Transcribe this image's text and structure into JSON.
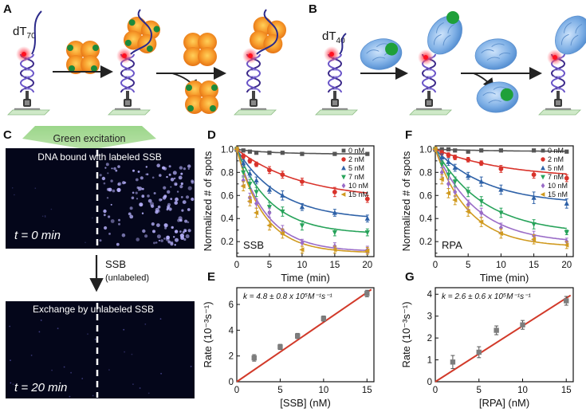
{
  "panel_labels": {
    "A": "A",
    "B": "B",
    "C": "C",
    "D": "D",
    "E": "E",
    "F": "F",
    "G": "G"
  },
  "schematic": {
    "dna_a": "dT",
    "dna_a_sub": "70",
    "dna_b": "dT",
    "dna_b_sub": "40"
  },
  "panel_c": {
    "excitation": "Green excitation",
    "top_caption": "DNA bound with labeled SSB",
    "top_time": "t = 0 min",
    "arrow_label": "SSB",
    "arrow_sublabel": "(unlabeled)",
    "bottom_caption": "Exchange by unlabeled SSB",
    "bottom_time": "t = 20 min"
  },
  "colors": {
    "0 nM": "#555555",
    "2 nM": "#d9332b",
    "5 nM": "#2f62a8",
    "7 nM": "#27a35a",
    "10 nM": "#9a6cc7",
    "15 nM": "#d09a1f",
    "fit_line": "#d23a2a",
    "gray_point": "#7d7d7d"
  },
  "chart_data": [
    {
      "id": "D",
      "type": "line",
      "inset_label": "SSB",
      "xlabel": "Time (min)",
      "ylabel": "Normalized # of spots",
      "xlim": [
        0,
        21
      ],
      "ylim": [
        0.07,
        1.03
      ],
      "xticks": [
        0,
        5,
        10,
        15,
        20
      ],
      "yticks": [
        0.1,
        0.2,
        0.3,
        0.4,
        0.5,
        0.6,
        0.7,
        0.8,
        0.9,
        1.0
      ],
      "ytick_labels": [
        "",
        "0.2",
        "",
        "0.4",
        "",
        "0.6",
        "",
        "0.8",
        "",
        "1.0"
      ],
      "legend_position": "top-right",
      "x": [
        0,
        1,
        2,
        3,
        5,
        7,
        10,
        15,
        20
      ],
      "series": [
        {
          "name": "0 nM",
          "marker": "square",
          "values": [
            1.0,
            0.99,
            0.98,
            0.97,
            0.97,
            0.97,
            0.96,
            0.96,
            0.96
          ],
          "err": [
            0.01,
            0.01,
            0.01,
            0.01,
            0.01,
            0.01,
            0.01,
            0.01,
            0.01
          ]
        },
        {
          "name": "2 nM",
          "marker": "circle",
          "values": [
            1.0,
            0.94,
            0.9,
            0.87,
            0.82,
            0.78,
            0.72,
            0.63,
            0.57
          ],
          "err": [
            0.02,
            0.02,
            0.02,
            0.02,
            0.03,
            0.03,
            0.03,
            0.04,
            0.03
          ]
        },
        {
          "name": "5 nM",
          "marker": "triangle-up",
          "values": [
            1.0,
            0.88,
            0.79,
            0.73,
            0.65,
            0.6,
            0.5,
            0.45,
            0.4
          ],
          "err": [
            0.02,
            0.03,
            0.03,
            0.03,
            0.03,
            0.04,
            0.03,
            0.03,
            0.03
          ]
        },
        {
          "name": "7 nM",
          "marker": "triangle-down",
          "values": [
            1.0,
            0.8,
            0.7,
            0.63,
            0.5,
            0.46,
            0.34,
            0.28,
            0.28
          ],
          "err": [
            0.02,
            0.04,
            0.04,
            0.04,
            0.04,
            0.04,
            0.04,
            0.03,
            0.03
          ]
        },
        {
          "name": "10 nM",
          "marker": "diamond",
          "values": [
            1.0,
            0.73,
            0.58,
            0.53,
            0.45,
            0.3,
            0.19,
            0.16,
            0.13
          ],
          "err": [
            0.02,
            0.04,
            0.04,
            0.04,
            0.04,
            0.04,
            0.03,
            0.03,
            0.03
          ]
        },
        {
          "name": "15 nM",
          "marker": "triangle-left",
          "values": [
            1.0,
            0.68,
            0.55,
            0.45,
            0.34,
            0.27,
            0.13,
            0.13,
            0.12
          ],
          "err": [
            0.02,
            0.04,
            0.04,
            0.04,
            0.04,
            0.04,
            0.03,
            0.03,
            0.03
          ]
        }
      ]
    },
    {
      "id": "F",
      "type": "line",
      "inset_label": "RPA",
      "xlabel": "Time (min)",
      "ylabel": "Normalized # of spots",
      "xlim": [
        0,
        21
      ],
      "ylim": [
        0.07,
        1.03
      ],
      "xticks": [
        0,
        5,
        10,
        15,
        20
      ],
      "yticks": [
        0.1,
        0.2,
        0.3,
        0.4,
        0.5,
        0.6,
        0.7,
        0.8,
        0.9,
        1.0
      ],
      "ytick_labels": [
        "",
        "0.2",
        "",
        "0.4",
        "",
        "0.6",
        "",
        "0.8",
        "",
        "1.0"
      ],
      "legend_position": "top-right",
      "x": [
        0,
        1,
        2,
        3,
        5,
        7,
        10,
        15,
        20
      ],
      "series": [
        {
          "name": "0 nM",
          "marker": "square",
          "values": [
            1.0,
            1.0,
            1.0,
            0.99,
            0.98,
            0.99,
            0.99,
            0.99,
            0.98
          ],
          "err": [
            0.01,
            0.01,
            0.01,
            0.01,
            0.01,
            0.01,
            0.01,
            0.01,
            0.01
          ]
        },
        {
          "name": "2 nM",
          "marker": "circle",
          "values": [
            1.0,
            0.97,
            0.95,
            0.93,
            0.91,
            0.88,
            0.83,
            0.78,
            0.75
          ],
          "err": [
            0.02,
            0.02,
            0.02,
            0.02,
            0.02,
            0.02,
            0.03,
            0.03,
            0.03
          ]
        },
        {
          "name": "5 nM",
          "marker": "triangle-up",
          "values": [
            1.0,
            0.93,
            0.89,
            0.84,
            0.77,
            0.72,
            0.65,
            0.58,
            0.53
          ],
          "err": [
            0.02,
            0.03,
            0.03,
            0.03,
            0.03,
            0.04,
            0.04,
            0.05,
            0.04
          ]
        },
        {
          "name": "7 nM",
          "marker": "triangle-down",
          "values": [
            1.0,
            0.87,
            0.78,
            0.72,
            0.63,
            0.55,
            0.45,
            0.35,
            0.28
          ],
          "err": [
            0.02,
            0.03,
            0.04,
            0.04,
            0.04,
            0.04,
            0.04,
            0.04,
            0.02
          ]
        },
        {
          "name": "10 nM",
          "marker": "diamond",
          "values": [
            1.0,
            0.8,
            0.7,
            0.63,
            0.52,
            0.45,
            0.32,
            0.25,
            0.2
          ],
          "err": [
            0.02,
            0.04,
            0.04,
            0.04,
            0.04,
            0.04,
            0.04,
            0.04,
            0.03
          ]
        },
        {
          "name": "15 nM",
          "marker": "triangle-left",
          "values": [
            1.0,
            0.74,
            0.62,
            0.56,
            0.46,
            0.37,
            0.27,
            0.22,
            0.17
          ],
          "err": [
            0.02,
            0.04,
            0.04,
            0.04,
            0.04,
            0.04,
            0.04,
            0.04,
            0.03
          ]
        }
      ]
    },
    {
      "id": "E",
      "type": "scatter",
      "xlabel": "[SSB] (nM)",
      "ylabel": "Rate (10⁻³s⁻¹)",
      "xlim": [
        0,
        15.8
      ],
      "ylim": [
        0,
        7.3
      ],
      "xticks": [
        0,
        5,
        10,
        15
      ],
      "yticks": [
        0,
        2,
        4,
        6
      ],
      "annotation": "k = 4.8 ± 0.8 x 10⁵M⁻¹s⁻¹",
      "points": {
        "x": [
          2,
          5,
          7,
          10,
          15
        ],
        "y": [
          1.85,
          2.7,
          3.55,
          4.9,
          6.85
        ],
        "err": [
          0.25,
          0.2,
          0.2,
          0.2,
          0.25
        ]
      },
      "fit": {
        "slope": 0.462,
        "intercept": 0
      }
    },
    {
      "id": "G",
      "type": "scatter",
      "xlabel": "[RPA] (nM)",
      "ylabel": "Rate (10⁻³s⁻¹)",
      "xlim": [
        0,
        15.8
      ],
      "ylim": [
        0,
        4.3
      ],
      "xticks": [
        0,
        5,
        10,
        15
      ],
      "yticks": [
        0,
        1,
        2,
        3,
        4
      ],
      "annotation": "k = 2.6 ± 0.6 x 10⁵M⁻¹s⁻¹",
      "points": {
        "x": [
          2,
          5,
          7,
          10,
          15
        ],
        "y": [
          0.9,
          1.35,
          2.35,
          2.6,
          3.7
        ],
        "err": [
          0.3,
          0.25,
          0.2,
          0.2,
          0.2
        ]
      },
      "fit": {
        "slope": 0.255,
        "intercept": 0
      }
    }
  ]
}
